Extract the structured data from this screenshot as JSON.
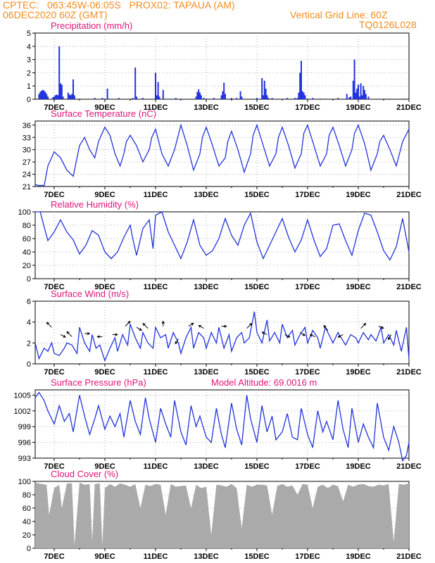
{
  "header": {
    "line1_left": "CPTEC:   063:45W-06:05S   PROX02: TAPAUA (AM)",
    "line2_left": "06DEC2020 60Z (GMT)",
    "line2_right": "Vertical Grid Line: 60Z",
    "line3_right": "TQ0126L028"
  },
  "colors": {
    "header": "#f08c1e",
    "title": "#e0147a",
    "line": "#2233dd",
    "cloud": "#aaaaaa"
  },
  "x_labels": [
    "7DEC",
    "9DEC",
    "11DEC",
    "13DEC",
    "15DEC",
    "17DEC",
    "19DEC",
    "21DEC"
  ],
  "chart_data": [
    {
      "type": "bar",
      "title": "Precipitation (mm/h)",
      "ylim": [
        0,
        5
      ],
      "yticks": [
        "0",
        "1",
        "2",
        "3",
        "4",
        "5"
      ],
      "x_day_range": [
        6.25,
        21
      ],
      "bars": [
        [
          6.4,
          0.4
        ],
        [
          6.45,
          0.55
        ],
        [
          6.5,
          0.65
        ],
        [
          6.55,
          0.7
        ],
        [
          6.6,
          0.65
        ],
        [
          6.65,
          0.55
        ],
        [
          6.7,
          0.4
        ],
        [
          6.75,
          0.2
        ],
        [
          6.95,
          0.15
        ],
        [
          7.0,
          0.2
        ],
        [
          7.05,
          0.3
        ],
        [
          7.1,
          0.35
        ],
        [
          7.15,
          0.3
        ],
        [
          7.2,
          4.0
        ],
        [
          7.25,
          1.2
        ],
        [
          7.3,
          1.1
        ],
        [
          7.35,
          0.2
        ],
        [
          7.55,
          0.5
        ],
        [
          7.6,
          0.35
        ],
        [
          7.65,
          0.3
        ],
        [
          7.7,
          0.4
        ],
        [
          7.75,
          1.5
        ],
        [
          7.8,
          0.3
        ],
        [
          8.6,
          0.1
        ],
        [
          8.9,
          0.1
        ],
        [
          9.1,
          0.8
        ],
        [
          9.55,
          0.1
        ],
        [
          10.1,
          0.1
        ],
        [
          10.2,
          2.4
        ],
        [
          10.25,
          0.2
        ],
        [
          10.5,
          0.1
        ],
        [
          11.0,
          2.0
        ],
        [
          11.05,
          0.3
        ],
        [
          11.1,
          1.3
        ],
        [
          11.15,
          0.2
        ],
        [
          11.3,
          0.7
        ],
        [
          11.8,
          0.1
        ],
        [
          12.6,
          0.2
        ],
        [
          12.65,
          0.55
        ],
        [
          12.7,
          0.75
        ],
        [
          12.75,
          0.5
        ],
        [
          12.8,
          0.3
        ],
        [
          12.9,
          0.1
        ],
        [
          13.3,
          0.1
        ],
        [
          13.6,
          0.3
        ],
        [
          13.65,
          0.6
        ],
        [
          13.7,
          1.25
        ],
        [
          13.75,
          0.4
        ],
        [
          14.0,
          0.1
        ],
        [
          14.2,
          0.1
        ],
        [
          14.35,
          0.6
        ],
        [
          14.4,
          0.2
        ],
        [
          15.0,
          0.1
        ],
        [
          15.2,
          1.6
        ],
        [
          15.25,
          0.3
        ],
        [
          15.3,
          1.4
        ],
        [
          15.35,
          0.8
        ],
        [
          15.4,
          0.3
        ],
        [
          15.45,
          0.1
        ],
        [
          15.6,
          0.1
        ],
        [
          16.2,
          0.1
        ],
        [
          16.5,
          0.1
        ],
        [
          16.6,
          0.1
        ],
        [
          16.65,
          0.5
        ],
        [
          16.7,
          2.0
        ],
        [
          16.75,
          2.9
        ],
        [
          16.8,
          0.6
        ],
        [
          16.85,
          0.5
        ],
        [
          16.9,
          0.3
        ],
        [
          17.2,
          0.1
        ],
        [
          17.5,
          0.05
        ],
        [
          18.2,
          0.1
        ],
        [
          18.55,
          0.4
        ],
        [
          18.65,
          0.15
        ],
        [
          18.7,
          0.2
        ],
        [
          18.8,
          1.4
        ],
        [
          18.85,
          3.0
        ],
        [
          18.9,
          0.5
        ],
        [
          18.95,
          0.8
        ],
        [
          19.0,
          1.1
        ],
        [
          19.05,
          0.2
        ],
        [
          19.1,
          1.2
        ],
        [
          19.15,
          0.3
        ],
        [
          19.2,
          1.0
        ],
        [
          19.25,
          0.7
        ],
        [
          19.3,
          0.4
        ],
        [
          19.4,
          0.2
        ],
        [
          20.2,
          0.05
        ],
        [
          20.8,
          0.05
        ]
      ]
    },
    {
      "type": "line",
      "title": "Surface Temperature (nC)",
      "ylim": [
        21,
        37
      ],
      "yticks": [
        "21",
        "24",
        "27",
        "30",
        "33",
        "36"
      ],
      "x": [
        6.25,
        6.4,
        6.55,
        6.6,
        6.75,
        7.0,
        7.25,
        7.5,
        7.75,
        7.9,
        8.0,
        8.2,
        8.4,
        8.6,
        8.75,
        9.0,
        9.2,
        9.4,
        9.6,
        9.75,
        9.85,
        10.0,
        10.25,
        10.5,
        10.75,
        10.85,
        11.0,
        11.25,
        11.5,
        11.75,
        12.0,
        12.25,
        12.5,
        12.75,
        12.85,
        13.0,
        13.25,
        13.5,
        13.75,
        13.85,
        14.0,
        14.25,
        14.5,
        14.75,
        14.85,
        15.0,
        15.25,
        15.5,
        15.75,
        15.85,
        16.0,
        16.25,
        16.5,
        16.75,
        16.85,
        17.0,
        17.25,
        17.5,
        17.75,
        17.85,
        18.0,
        18.25,
        18.5,
        18.75,
        18.85,
        19.0,
        19.25,
        19.5,
        19.75,
        19.85,
        20.0,
        20.25,
        20.5,
        20.75,
        21.0
      ],
      "values": [
        21.5,
        21.2,
        21.3,
        21.0,
        26.0,
        29.5,
        28.0,
        25.0,
        23.5,
        28.0,
        31.0,
        33.0,
        30.0,
        28.0,
        32.0,
        35.5,
        33.5,
        29.0,
        26.0,
        29.0,
        32.0,
        33.5,
        31.0,
        27.0,
        30.0,
        33.0,
        35.0,
        29.0,
        26.0,
        30.0,
        36.0,
        31.0,
        25.0,
        29.0,
        33.0,
        35.5,
        31.0,
        26.0,
        28.0,
        32.0,
        34.5,
        30.0,
        24.5,
        29.0,
        33.5,
        36.0,
        31.0,
        26.0,
        29.0,
        33.0,
        35.5,
        31.0,
        25.5,
        29.0,
        34.0,
        36.0,
        31.0,
        26.0,
        29.0,
        33.5,
        35.5,
        31.0,
        26.0,
        30.0,
        34.0,
        36.0,
        31.5,
        25.0,
        29.0,
        32.0,
        33.5,
        30.0,
        26.0,
        32.0,
        35.0
      ]
    },
    {
      "type": "line",
      "title": "Relative Humidity (%)",
      "ylim": [
        0,
        100
      ],
      "yticks": [
        "0",
        "20",
        "40",
        "60",
        "80",
        "100"
      ],
      "x": [
        6.25,
        6.45,
        6.6,
        6.75,
        7.0,
        7.25,
        7.5,
        7.75,
        8.0,
        8.25,
        8.5,
        8.75,
        9.0,
        9.25,
        9.5,
        9.75,
        10.0,
        10.1,
        10.25,
        10.5,
        10.75,
        10.9,
        11.0,
        11.25,
        11.5,
        11.75,
        12.0,
        12.25,
        12.5,
        12.75,
        13.0,
        13.25,
        13.5,
        13.75,
        14.0,
        14.25,
        14.5,
        14.75,
        15.0,
        15.25,
        15.5,
        15.75,
        16.0,
        16.25,
        16.5,
        16.75,
        17.0,
        17.25,
        17.5,
        17.75,
        18.0,
        18.25,
        18.5,
        18.75,
        19.0,
        19.25,
        19.5,
        19.75,
        20.0,
        20.25,
        20.5,
        20.75,
        20.9,
        21.0
      ],
      "values": [
        100,
        100,
        78,
        57,
        70,
        88,
        70,
        58,
        37,
        50,
        72,
        65,
        40,
        30,
        40,
        62,
        80,
        60,
        35,
        75,
        88,
        45,
        95,
        100,
        70,
        50,
        30,
        55,
        88,
        50,
        35,
        42,
        60,
        90,
        65,
        50,
        80,
        98,
        55,
        30,
        50,
        70,
        90,
        62,
        40,
        58,
        88,
        58,
        33,
        45,
        80,
        82,
        57,
        35,
        72,
        98,
        95,
        70,
        42,
        28,
        48,
        90,
        60,
        40
      ]
    },
    {
      "type": "line",
      "title": "Surface Wind (m/s)",
      "ylim": [
        0,
        6
      ],
      "yticks": [
        "0",
        "2",
        "4",
        "6"
      ],
      "x": [
        6.25,
        6.4,
        6.6,
        6.75,
        6.9,
        7.0,
        7.2,
        7.4,
        7.5,
        7.7,
        7.9,
        8.0,
        8.2,
        8.4,
        8.5,
        8.65,
        8.8,
        9.0,
        9.2,
        9.4,
        9.5,
        9.7,
        9.9,
        10.0,
        10.2,
        10.4,
        10.5,
        10.7,
        10.9,
        11.0,
        11.2,
        11.4,
        11.5,
        11.7,
        11.9,
        12.0,
        12.2,
        12.4,
        12.5,
        12.7,
        12.9,
        13.0,
        13.2,
        13.4,
        13.5,
        13.7,
        13.9,
        14.0,
        14.2,
        14.4,
        14.5,
        14.7,
        14.9,
        15.0,
        15.2,
        15.4,
        15.5,
        15.7,
        15.9,
        16.0,
        16.2,
        16.4,
        16.5,
        16.7,
        16.9,
        17.0,
        17.2,
        17.4,
        17.5,
        17.7,
        17.9,
        18.0,
        18.2,
        18.4,
        18.5,
        18.7,
        18.9,
        19.0,
        19.2,
        19.4,
        19.5,
        19.7,
        19.9,
        20.0,
        20.2,
        20.4,
        20.5,
        20.7,
        20.9,
        21.0
      ],
      "values": [
        2.0,
        0.5,
        1.5,
        1.2,
        2.0,
        1.0,
        0.8,
        1.5,
        2.0,
        1.8,
        1.0,
        3.5,
        2.0,
        1.2,
        2.8,
        1.5,
        1.8,
        0.3,
        1.5,
        2.5,
        1.2,
        2.8,
        1.8,
        3.8,
        2.5,
        1.5,
        3.0,
        2.0,
        1.5,
        3.5,
        2.5,
        2.8,
        1.5,
        3.0,
        2.0,
        1.0,
        2.5,
        3.5,
        1.5,
        3.0,
        2.5,
        1.5,
        3.0,
        2.0,
        3.5,
        1.5,
        2.8,
        1.2,
        2.5,
        3.0,
        2.0,
        2.5,
        5.0,
        3.0,
        2.0,
        4.2,
        2.2,
        3.0,
        2.0,
        3.8,
        2.5,
        3.2,
        1.8,
        2.8,
        3.5,
        2.0,
        3.2,
        2.5,
        1.5,
        3.5,
        2.5,
        2.0,
        3.0,
        2.2,
        1.8,
        2.8,
        2.5,
        2.0,
        3.0,
        2.3,
        2.8,
        2.2,
        3.5,
        2.0,
        2.8,
        1.8,
        3.2,
        1.2,
        3.5,
        0.5
      ]
    },
    {
      "type": "line",
      "title": "Surface Pressure (hPa)",
      "subtitle": "Model Altitude: 69.0016 m",
      "ylim": [
        993,
        1006
      ],
      "yticks": [
        "993",
        "996",
        "999",
        "1002",
        "1005"
      ],
      "x": [
        6.25,
        6.4,
        6.6,
        6.75,
        7.0,
        7.2,
        7.4,
        7.6,
        7.75,
        8.0,
        8.2,
        8.4,
        8.6,
        8.75,
        9.0,
        9.2,
        9.4,
        9.6,
        9.75,
        10.0,
        10.2,
        10.4,
        10.6,
        10.75,
        11.0,
        11.2,
        11.4,
        11.6,
        11.75,
        12.0,
        12.2,
        12.4,
        12.6,
        12.75,
        13.0,
        13.2,
        13.4,
        13.6,
        13.75,
        14.0,
        14.2,
        14.4,
        14.6,
        14.75,
        15.0,
        15.2,
        15.4,
        15.6,
        15.75,
        16.0,
        16.2,
        16.4,
        16.6,
        16.75,
        17.0,
        17.2,
        17.4,
        17.6,
        17.75,
        18.0,
        18.2,
        18.4,
        18.6,
        18.75,
        19.0,
        19.2,
        19.4,
        19.6,
        19.75,
        20.0,
        20.2,
        20.4,
        20.6,
        20.75,
        20.9,
        21.0
      ],
      "values": [
        1004.5,
        1005.5,
        1004.0,
        1002.0,
        999.5,
        1003.0,
        1000.0,
        1001.5,
        998.0,
        1005.0,
        1001.0,
        997.5,
        1000.5,
        1003.0,
        998.5,
        1001.0,
        999.0,
        1001.5,
        997.0,
        1004.0,
        1000.0,
        997.5,
        1004.5,
        1000.5,
        996.0,
        1002.5,
        999.5,
        997.0,
        1004.0,
        998.0,
        995.5,
        1003.0,
        999.0,
        1001.0,
        997.0,
        996.0,
        1002.5,
        997.5,
        995.0,
        1003.5,
        998.5,
        995.5,
        1005.0,
        1000.5,
        996.0,
        1003.0,
        998.0,
        1001.0,
        996.5,
        998.0,
        1001.5,
        997.0,
        996.5,
        1002.5,
        997.5,
        995.0,
        1002.0,
        998.0,
        1000.0,
        996.5,
        1004.0,
        998.5,
        995.0,
        1002.5,
        996.0,
        999.5,
        997.0,
        995.0,
        1003.5,
        997.0,
        994.5,
        999.0,
        996.0,
        992.5,
        993.5,
        996.0
      ]
    },
    {
      "type": "area",
      "title": "Cloud Cover (%)",
      "ylim": [
        0,
        100
      ],
      "yticks": [
        "0",
        "20",
        "40",
        "60",
        "80",
        "100"
      ],
      "x": [
        6.25,
        6.5,
        6.7,
        6.8,
        7.0,
        7.2,
        7.3,
        7.5,
        7.7,
        7.8,
        8.0,
        8.2,
        8.4,
        8.5,
        8.6,
        8.8,
        8.9,
        9.0,
        9.2,
        9.4,
        9.6,
        9.8,
        10.0,
        10.2,
        10.4,
        10.6,
        10.8,
        11.0,
        11.2,
        11.4,
        11.6,
        11.8,
        12.0,
        12.2,
        12.4,
        12.6,
        12.8,
        13.0,
        13.2,
        13.4,
        13.6,
        13.8,
        14.0,
        14.2,
        14.4,
        14.6,
        14.8,
        15.0,
        15.2,
        15.4,
        15.6,
        15.8,
        16.0,
        16.2,
        16.4,
        16.6,
        16.8,
        17.0,
        17.2,
        17.4,
        17.6,
        17.8,
        18.0,
        18.2,
        18.4,
        18.6,
        18.8,
        19.0,
        19.2,
        19.4,
        19.6,
        19.8,
        20.0,
        20.2,
        20.4,
        20.6,
        20.8,
        21.0
      ],
      "values": [
        98,
        96,
        95,
        50,
        90,
        95,
        60,
        97,
        97,
        5,
        98,
        95,
        96,
        10,
        96,
        97,
        5,
        90,
        96,
        92,
        97,
        95,
        92,
        96,
        60,
        95,
        93,
        96,
        95,
        50,
        96,
        92,
        93,
        94,
        60,
        95,
        90,
        92,
        20,
        95,
        94,
        92,
        96,
        90,
        30,
        95,
        92,
        95,
        95,
        94,
        50,
        93,
        96,
        92,
        94,
        80,
        96,
        95,
        60,
        92,
        95,
        90,
        95,
        93,
        70,
        95,
        92,
        95,
        96,
        93,
        92,
        95,
        94,
        96,
        10,
        96,
        95,
        97
      ]
    }
  ]
}
